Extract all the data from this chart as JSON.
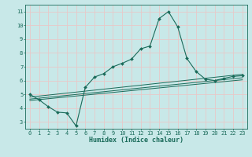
{
  "xlabel": "Humidex (Indice chaleur)",
  "background_color": "#c8e8e8",
  "grid_color": "#e8c8c8",
  "line_color": "#1a6b5a",
  "xlim": [
    -0.5,
    23.5
  ],
  "ylim": [
    2.5,
    11.5
  ],
  "xticks": [
    0,
    1,
    2,
    3,
    4,
    5,
    6,
    7,
    8,
    9,
    10,
    11,
    12,
    13,
    14,
    15,
    16,
    17,
    18,
    19,
    20,
    21,
    22,
    23
  ],
  "yticks": [
    3,
    4,
    5,
    6,
    7,
    8,
    9,
    10,
    11
  ],
  "main_x": [
    0,
    1,
    2,
    3,
    4,
    5,
    6,
    7,
    8,
    9,
    10,
    11,
    12,
    13,
    14,
    15,
    16,
    17,
    18,
    19,
    20,
    21,
    22,
    23
  ],
  "main_y": [
    5.0,
    4.6,
    4.1,
    3.7,
    3.65,
    2.7,
    5.5,
    6.25,
    6.5,
    7.0,
    7.25,
    7.55,
    8.3,
    8.5,
    10.5,
    11.0,
    9.9,
    7.6,
    6.65,
    6.1,
    6.0,
    6.15,
    6.3,
    6.35
  ],
  "trend1_x": [
    0,
    23
  ],
  "trend1_y": [
    4.55,
    6.05
  ],
  "trend2_x": [
    0,
    23
  ],
  "trend2_y": [
    4.65,
    6.2
  ],
  "trend3_x": [
    0,
    23
  ],
  "trend3_y": [
    4.8,
    6.45
  ],
  "tick_fontsize": 5.0,
  "xlabel_fontsize": 6.0
}
